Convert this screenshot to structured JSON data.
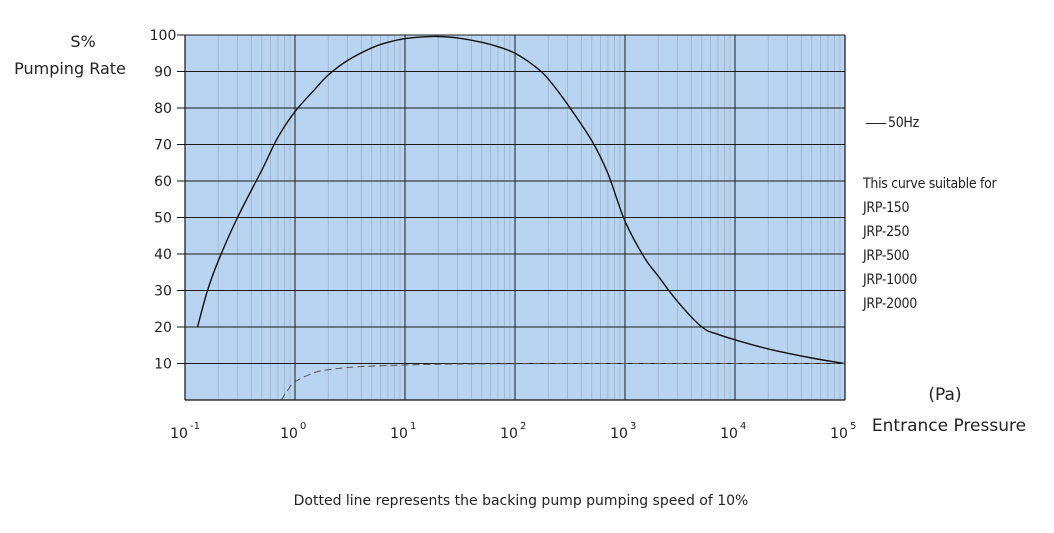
{
  "chart_data": {
    "type": "line",
    "ylabel_lines": [
      "S%",
      "Pumping Rate"
    ],
    "xlabel_unit": "(Pa)",
    "xlabel": "Entrance Pressure",
    "x_scale": "log",
    "x_ticks": [
      {
        "value": 0.1,
        "base": "10",
        "exp": "-1"
      },
      {
        "value": 1,
        "base": "10",
        "exp": "0"
      },
      {
        "value": 10,
        "base": "10",
        "exp": "1"
      },
      {
        "value": 100,
        "base": "10",
        "exp": "2"
      },
      {
        "value": 1000,
        "base": "10",
        "exp": "3"
      },
      {
        "value": 10000,
        "base": "10",
        "exp": "4"
      },
      {
        "value": 100000,
        "base": "10",
        "exp": "5"
      }
    ],
    "xlim": [
      0.1,
      100000
    ],
    "y_ticks": [
      10,
      20,
      30,
      40,
      50,
      60,
      70,
      80,
      90,
      100
    ],
    "ylim": [
      0,
      100
    ],
    "grid": true,
    "plot_background": "#b9d4f1",
    "series": [
      {
        "name": "50Hz",
        "style": "solid",
        "x": [
          0.13,
          0.16,
          0.2,
          0.3,
          0.5,
          0.7,
          1,
          1.5,
          2,
          3,
          5,
          7,
          10,
          15,
          20,
          30,
          50,
          70,
          100,
          150,
          200,
          300,
          500,
          700,
          1000,
          1500,
          2000,
          3000,
          5000,
          7000,
          10000,
          20000,
          50000,
          100000
        ],
        "y": [
          20,
          30,
          38,
          50,
          63,
          72,
          79,
          85,
          89,
          93,
          96.5,
          98,
          99,
          99.5,
          99.6,
          99.2,
          98,
          96.8,
          95,
          91.5,
          88,
          81,
          71,
          62,
          49,
          39,
          34,
          27,
          20,
          18,
          16.5,
          14,
          11.5,
          10
        ]
      },
      {
        "style": "dashed",
        "x": [
          0.75,
          0.85,
          1,
          1.5,
          2,
          3,
          5,
          10,
          20,
          50,
          100,
          1000,
          100000
        ],
        "y": [
          0,
          2.5,
          5,
          7.5,
          8.3,
          8.9,
          9.3,
          9.6,
          9.8,
          9.9,
          9.95,
          10,
          10
        ]
      }
    ],
    "legend": [
      {
        "label": "50Hz"
      }
    ],
    "annotation_lines": [
      "This curve suitable for",
      "JRP-150",
      "JRP-250",
      "JRP-500",
      "JRP-1000",
      "JRP-2000"
    ],
    "caption": "Dotted line represents the backing pump pumping speed of 10%"
  }
}
